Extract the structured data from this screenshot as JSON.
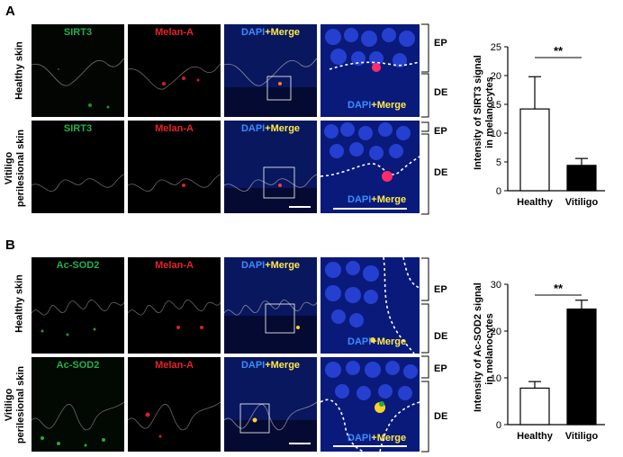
{
  "panels": [
    {
      "letter": "A",
      "rows": [
        {
          "row_label": [
            "Healthy skin"
          ],
          "channels": [
            "SIRT3",
            "Melan-A",
            "DAPI",
            "+Merge"
          ],
          "inset_label": [
            "DAPI",
            "+Merge"
          ],
          "layers": [
            "EP",
            "DE"
          ]
        },
        {
          "row_label": [
            "Vitiligo",
            "perilesional  skin"
          ],
          "channels": [
            "SIRT3",
            "Melan-A",
            "DAPI",
            "+Merge"
          ],
          "inset_label": [
            "DAPI",
            "+Merge"
          ],
          "layers": [
            "EP",
            "DE"
          ]
        }
      ]
    },
    {
      "letter": "B",
      "rows": [
        {
          "row_label": [
            "Healthy skin"
          ],
          "channels": [
            "Ac-SOD2",
            "Melan-A",
            "DAPI",
            "+Merge"
          ],
          "inset_label": [
            "DAPI",
            "+Merge"
          ],
          "layers": [
            "EP",
            "DE"
          ]
        },
        {
          "row_label": [
            "Vitiligo",
            "perilesional  skin"
          ],
          "channels": [
            "Ac-SOD2",
            "Melan-A",
            "DAPI",
            "+Merge"
          ],
          "inset_label": [
            "DAPI",
            "+Merge"
          ],
          "layers": [
            "EP",
            "DE"
          ]
        }
      ]
    }
  ],
  "colors": {
    "green": "#22b14c",
    "red": "#e8222a",
    "blue": "#3a8dff",
    "yellow": "#ffe94a"
  },
  "chart_data": [
    {
      "type": "bar",
      "categories": [
        "Healthy",
        "Vitiligo"
      ],
      "values": [
        14.2,
        4.4
      ],
      "error_upper": [
        19.8,
        5.6
      ],
      "bar_colors": [
        "#ffffff",
        "#000000"
      ],
      "ylabel": [
        "Intensity of SIRT3 signal",
        "in melanocytes"
      ],
      "ylim": [
        0,
        25
      ],
      "yticks": [
        "0",
        "5",
        "10",
        "15",
        "20",
        "25"
      ],
      "annotation": "**"
    },
    {
      "type": "bar",
      "categories": [
        "Healthy",
        "Vitiligo"
      ],
      "values": [
        7.8,
        24.7
      ],
      "error_upper": [
        9.2,
        26.6
      ],
      "bar_colors": [
        "#ffffff",
        "#000000"
      ],
      "ylabel": [
        "Intensity of Ac-SOD2 signal",
        "in melanocytes"
      ],
      "ylim": [
        0,
        30
      ],
      "yticks": [
        "0",
        "10",
        "20",
        "30"
      ],
      "annotation": "**"
    }
  ]
}
